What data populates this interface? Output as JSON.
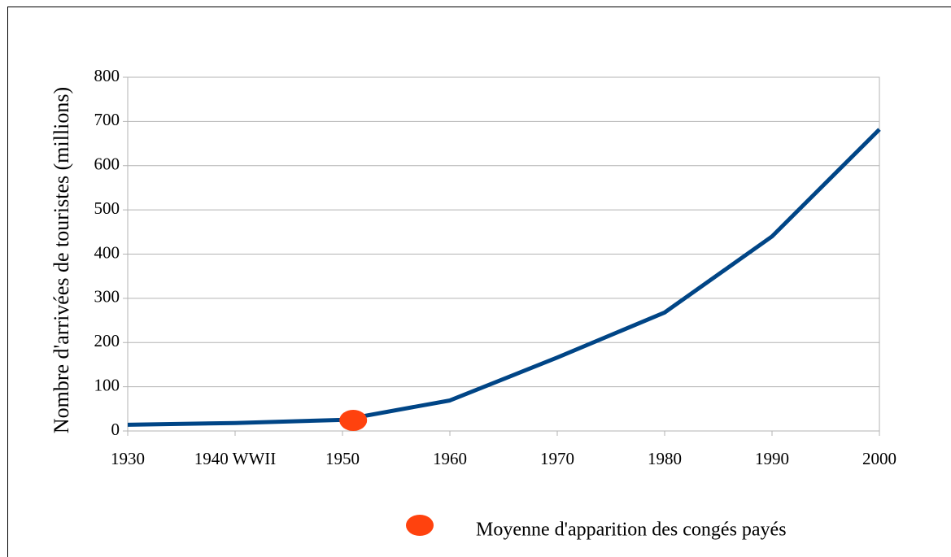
{
  "chart_data": {
    "type": "line",
    "ylabel": "Nombre d'arrivées de touristes (millions)",
    "x": [
      1930,
      1940,
      1950,
      1960,
      1970,
      1980,
      1990,
      2000
    ],
    "series": [
      {
        "name": "Nombre d'arrivées de touristes (millions)",
        "color": "#004586",
        "values": [
          14,
          18,
          25,
          69,
          166,
          268,
          440,
          682
        ]
      }
    ],
    "points": [
      {
        "name": "Moyenne d'apparition des congés payés",
        "color": "#ff420e",
        "x": 1951,
        "y": 24
      }
    ],
    "xlim": [
      1930,
      2000
    ],
    "xticks": [
      1930,
      {
        "value": 1940,
        "label": "1940 WWII"
      },
      1950,
      1960,
      1970,
      1980,
      1990,
      2000
    ],
    "ylim": [
      0,
      800
    ],
    "yticks": [
      0,
      100,
      200,
      300,
      400,
      500,
      600,
      700,
      800
    ],
    "grid": true,
    "legend": "bottom"
  }
}
